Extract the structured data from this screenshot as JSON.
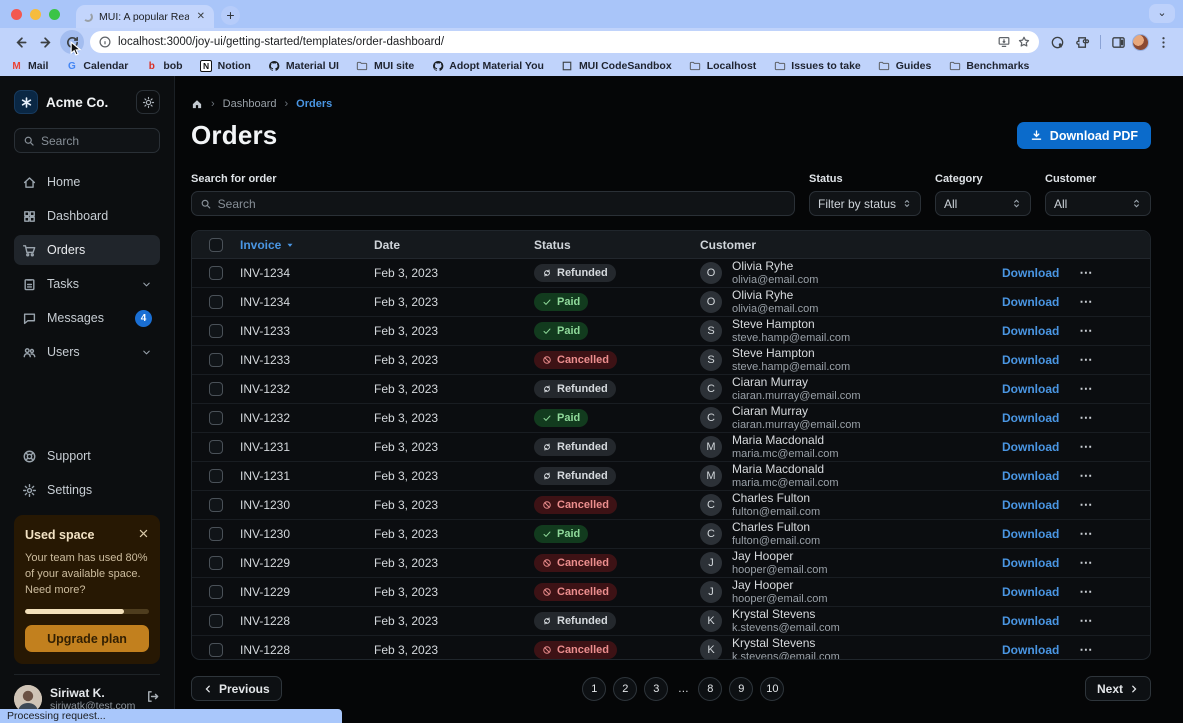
{
  "colors": {
    "primary_blue": "#0b6bcb",
    "link_blue": "#4a96e3",
    "paid_green_text": "#8fd99a",
    "cancelled_red_text": "#ec8e8e",
    "warning_amber": "#c2801e",
    "badge_blue": "#1a6fd4"
  },
  "browser": {
    "tab_title": "MUI: A popular React UI fram",
    "url": "localhost:3000/joy-ui/getting-started/templates/order-dashboard/",
    "new_tab_glyph": "+",
    "bookmarks": [
      {
        "label": "Mail",
        "icon": "gmail-icon"
      },
      {
        "label": "Calendar",
        "icon": "google-icon"
      },
      {
        "label": "bob",
        "icon": "bob-icon"
      },
      {
        "label": "Notion",
        "icon": "notion-icon"
      },
      {
        "label": "Material UI",
        "icon": "github-icon"
      },
      {
        "label": "MUI site",
        "icon": "folder-icon"
      },
      {
        "label": "Adopt Material You",
        "icon": "github-icon"
      },
      {
        "label": "MUI CodeSandbox",
        "icon": "codesandbox-icon"
      },
      {
        "label": "Localhost",
        "icon": "folder-icon"
      },
      {
        "label": "Issues to take",
        "icon": "folder-icon"
      },
      {
        "label": "Guides",
        "icon": "folder-icon"
      },
      {
        "label": "Benchmarks",
        "icon": "folder-icon"
      }
    ],
    "status_text": "Processing request..."
  },
  "sidebar": {
    "brand": "Acme Co.",
    "search_placeholder": "Search",
    "nav": [
      {
        "label": "Home",
        "icon": "home-icon"
      },
      {
        "label": "Dashboard",
        "icon": "dashboard-icon"
      },
      {
        "label": "Orders",
        "icon": "cart-icon",
        "selected": true
      },
      {
        "label": "Tasks",
        "icon": "tasks-icon",
        "expandable": true
      },
      {
        "label": "Messages",
        "icon": "messages-icon",
        "badge": "4"
      },
      {
        "label": "Users",
        "icon": "users-icon",
        "expandable": true
      }
    ],
    "footer_nav": [
      {
        "label": "Support",
        "icon": "support-icon"
      },
      {
        "label": "Settings",
        "icon": "settings-icon"
      }
    ],
    "used_space": {
      "title": "Used space",
      "body": "Your team has used 80% of your available space. Need more?",
      "percent": 80,
      "button_label": "Upgrade plan"
    },
    "user": {
      "name": "Siriwat K.",
      "email": "siriwatk@test.com"
    }
  },
  "main": {
    "breadcrumb": {
      "items": [
        "Dashboard",
        "Orders"
      ]
    },
    "title": "Orders",
    "download_button_label": "Download PDF",
    "filters": {
      "search_label": "Search for order",
      "search_placeholder": "Search",
      "selects": [
        {
          "label": "Status",
          "value": "Filter by status"
        },
        {
          "label": "Category",
          "value": "All"
        },
        {
          "label": "Customer",
          "value": "All"
        }
      ]
    },
    "table": {
      "headers": {
        "invoice": "Invoice",
        "date": "Date",
        "status": "Status",
        "customer": "Customer"
      },
      "download_label": "Download",
      "rows": [
        {
          "invoice": "INV-1234",
          "date": "Feb 3, 2023",
          "status": "Refunded",
          "initial": "O",
          "name": "Olivia Ryhe",
          "email": "olivia@email.com"
        },
        {
          "invoice": "INV-1234",
          "date": "Feb 3, 2023",
          "status": "Paid",
          "initial": "O",
          "name": "Olivia Ryhe",
          "email": "olivia@email.com"
        },
        {
          "invoice": "INV-1233",
          "date": "Feb 3, 2023",
          "status": "Paid",
          "initial": "S",
          "name": "Steve Hampton",
          "email": "steve.hamp@email.com"
        },
        {
          "invoice": "INV-1233",
          "date": "Feb 3, 2023",
          "status": "Cancelled",
          "initial": "S",
          "name": "Steve Hampton",
          "email": "steve.hamp@email.com"
        },
        {
          "invoice": "INV-1232",
          "date": "Feb 3, 2023",
          "status": "Refunded",
          "initial": "C",
          "name": "Ciaran Murray",
          "email": "ciaran.murray@email.com"
        },
        {
          "invoice": "INV-1232",
          "date": "Feb 3, 2023",
          "status": "Paid",
          "initial": "C",
          "name": "Ciaran Murray",
          "email": "ciaran.murray@email.com"
        },
        {
          "invoice": "INV-1231",
          "date": "Feb 3, 2023",
          "status": "Refunded",
          "initial": "M",
          "name": "Maria Macdonald",
          "email": "maria.mc@email.com"
        },
        {
          "invoice": "INV-1231",
          "date": "Feb 3, 2023",
          "status": "Refunded",
          "initial": "M",
          "name": "Maria Macdonald",
          "email": "maria.mc@email.com"
        },
        {
          "invoice": "INV-1230",
          "date": "Feb 3, 2023",
          "status": "Cancelled",
          "initial": "C",
          "name": "Charles Fulton",
          "email": "fulton@email.com"
        },
        {
          "invoice": "INV-1230",
          "date": "Feb 3, 2023",
          "status": "Paid",
          "initial": "C",
          "name": "Charles Fulton",
          "email": "fulton@email.com"
        },
        {
          "invoice": "INV-1229",
          "date": "Feb 3, 2023",
          "status": "Cancelled",
          "initial": "J",
          "name": "Jay Hooper",
          "email": "hooper@email.com"
        },
        {
          "invoice": "INV-1229",
          "date": "Feb 3, 2023",
          "status": "Cancelled",
          "initial": "J",
          "name": "Jay Hooper",
          "email": "hooper@email.com"
        },
        {
          "invoice": "INV-1228",
          "date": "Feb 3, 2023",
          "status": "Refunded",
          "initial": "K",
          "name": "Krystal Stevens",
          "email": "k.stevens@email.com"
        },
        {
          "invoice": "INV-1228",
          "date": "Feb 3, 2023",
          "status": "Cancelled",
          "initial": "K",
          "name": "Krystal Stevens",
          "email": "k.stevens@email.com"
        }
      ]
    },
    "pagination": {
      "previous_label": "Previous",
      "pages": [
        "1",
        "2",
        "3",
        "…",
        "8",
        "9",
        "10"
      ],
      "next_label": "Next"
    }
  }
}
